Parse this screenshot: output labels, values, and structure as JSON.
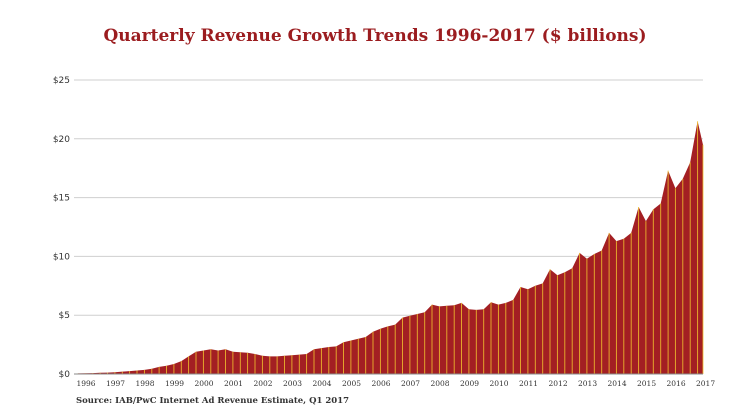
{
  "title": "Quarterly Revenue Growth Trends 1996-2017 ($ billions)",
  "source": "Source: IAB/PwC Internet Ad Revenue Estimate, Q1 2017",
  "colors": {
    "title": "#9b1c1f",
    "area": "#a31f23",
    "divider": "#f2c32e",
    "grid": "#cfcfcf"
  },
  "chart_data": {
    "type": "area",
    "title": "Quarterly Revenue Growth Trends 1996-2017 ($ billions)",
    "xlabel": "",
    "ylabel": "",
    "ylim": [
      0,
      25
    ],
    "y_ticks": [
      "$0",
      "$5",
      "$10",
      "$15",
      "$20",
      "$25"
    ],
    "y_tick_values": [
      0,
      5,
      10,
      15,
      20,
      25
    ],
    "x_tick_labels": [
      "1996",
      "1997",
      "1998",
      "1999",
      "2000",
      "2001",
      "2002",
      "2003",
      "2004",
      "2005",
      "2006",
      "2007",
      "2008",
      "2009",
      "2010",
      "2011",
      "2012",
      "2013",
      "2014",
      "2015",
      "2016",
      "2017"
    ],
    "grid": true,
    "series": [
      {
        "x": [
          "1996",
          "1997",
          "1998",
          "1999",
          "2000",
          "2001",
          "2002",
          "2003",
          "2004",
          "2005",
          "2006",
          "2007",
          "2008",
          "2009",
          "2010",
          "2011",
          "2012",
          "2013",
          "2014",
          "2015",
          "2016",
          "2017"
        ],
        "quarterly_values": [
          [
            0.05,
            0.06,
            0.08,
            0.1
          ],
          [
            0.12,
            0.15,
            0.2,
            0.25
          ],
          [
            0.3,
            0.35,
            0.45,
            0.6
          ],
          [
            0.7,
            0.85,
            1.1,
            1.5
          ],
          [
            1.9,
            2.0,
            2.1,
            2.0
          ],
          [
            2.1,
            1.9,
            1.85,
            1.8
          ],
          [
            1.7,
            1.55,
            1.5,
            1.5
          ],
          [
            1.55,
            1.6,
            1.65,
            1.7
          ],
          [
            2.1,
            2.2,
            2.3,
            2.35
          ],
          [
            2.7,
            2.85,
            3.0,
            3.15
          ],
          [
            3.6,
            3.85,
            4.05,
            4.2
          ],
          [
            4.8,
            4.95,
            5.1,
            5.25
          ],
          [
            5.9,
            5.75,
            5.8,
            5.85
          ],
          [
            6.05,
            5.5,
            5.45,
            5.5
          ],
          [
            6.1,
            5.9,
            6.05,
            6.3
          ],
          [
            7.4,
            7.2,
            7.5,
            7.7
          ],
          [
            8.9,
            8.4,
            8.65,
            9.0
          ],
          [
            10.3,
            9.8,
            10.2,
            10.5
          ],
          [
            12.0,
            11.3,
            11.5,
            12.0
          ],
          [
            14.2,
            13.0,
            14.0,
            14.5
          ],
          [
            17.3,
            15.8,
            16.6,
            18.0
          ],
          [
            21.5,
            19.5
          ]
        ]
      }
    ]
  }
}
